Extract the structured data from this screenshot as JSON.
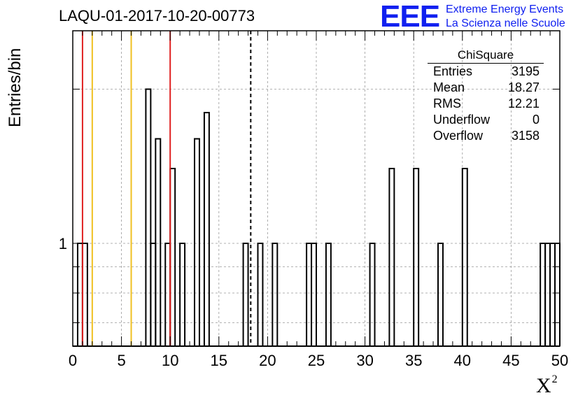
{
  "title": "LAQU-01-2017-10-20-00773",
  "logo": {
    "mark": "EEE",
    "line1": "Extreme Energy Events",
    "line2": "La Scienza nelle Scuole",
    "color": "#1020f0"
  },
  "chart_data": {
    "type": "bar",
    "title": "LAQU-01-2017-10-20-00773",
    "xlabel": "X",
    "xlabel_sup": "2",
    "ylabel": "Entries/bin",
    "xlim": [
      0,
      50
    ],
    "ylog": true,
    "ylim": [
      0.63,
      2.6
    ],
    "yticklabels": [
      {
        "value": 1,
        "label": "1"
      }
    ],
    "xticklabels": [
      "0",
      "5",
      "10",
      "15",
      "20",
      "25",
      "30",
      "35",
      "40",
      "45",
      "50"
    ],
    "bin_width": 0.5,
    "bins": [
      {
        "x": 0.75,
        "y": 1
      },
      {
        "x": 1.25,
        "y": 1
      },
      {
        "x": 7.75,
        "y": 2
      },
      {
        "x": 8.25,
        "y": 1
      },
      {
        "x": 8.75,
        "y": 1.6
      },
      {
        "x": 9.75,
        "y": 1
      },
      {
        "x": 10.25,
        "y": 1.4
      },
      {
        "x": 11.25,
        "y": 1
      },
      {
        "x": 12.75,
        "y": 1.6
      },
      {
        "x": 13.75,
        "y": 1.8
      },
      {
        "x": 17.75,
        "y": 1
      },
      {
        "x": 19.25,
        "y": 1
      },
      {
        "x": 20.75,
        "y": 1
      },
      {
        "x": 24.25,
        "y": 1
      },
      {
        "x": 24.75,
        "y": 1
      },
      {
        "x": 26.25,
        "y": 1
      },
      {
        "x": 30.75,
        "y": 1
      },
      {
        "x": 32.75,
        "y": 1.4
      },
      {
        "x": 35.25,
        "y": 1.4
      },
      {
        "x": 37.75,
        "y": 1
      },
      {
        "x": 40.25,
        "y": 1.4
      },
      {
        "x": 48.25,
        "y": 1
      },
      {
        "x": 48.75,
        "y": 1
      },
      {
        "x": 49.25,
        "y": 1
      },
      {
        "x": 49.75,
        "y": 1
      }
    ],
    "vertical_lines": [
      {
        "x": 1,
        "color": "#e02020",
        "style": "solid"
      },
      {
        "x": 2,
        "color": "#f0c020",
        "style": "solid"
      },
      {
        "x": 6,
        "color": "#f0c020",
        "style": "solid"
      },
      {
        "x": 10,
        "color": "#e02020",
        "style": "solid"
      },
      {
        "x": 18.27,
        "color": "#000000",
        "style": "dashed"
      }
    ],
    "grid": true,
    "stats": {
      "title": "ChiSquare",
      "rows": [
        {
          "label": "Entries",
          "value": "3195"
        },
        {
          "label": "Mean",
          "value": "18.27"
        },
        {
          "label": "RMS",
          "value": "12.21"
        },
        {
          "label": "Underflow",
          "value": "0"
        },
        {
          "label": "Overflow",
          "value": "3158"
        }
      ]
    }
  }
}
